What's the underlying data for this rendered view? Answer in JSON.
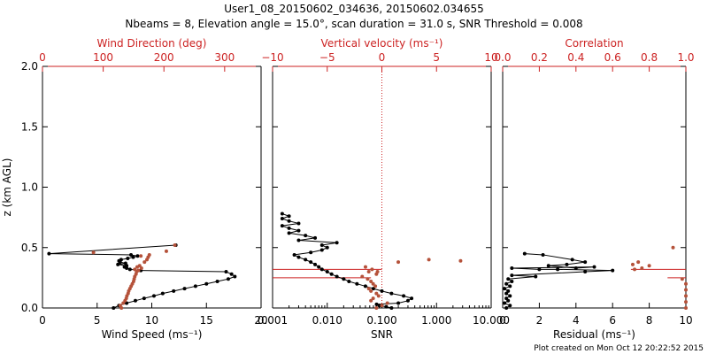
{
  "title_line1": "User1_08_20150602_034636, 20150602.034655",
  "title_line2": "Nbeams = 8, Elevation angle = 15.0°, scan duration = 31.0 s, SNR Threshold = 0.008",
  "footer": "Plot created on Mon Oct 12 20:22:52 2015",
  "colors": {
    "axis": "#000000",
    "secondary": "#cc2222",
    "points_primary": "#000000",
    "points_secondary": "#b5523a"
  },
  "chart_data": [
    {
      "type": "scatter",
      "ylabel": "z (km AGL)",
      "y_ticks": [
        "0.0",
        "0.5",
        "1.0",
        "1.5",
        "2.0"
      ],
      "ylim": [
        0,
        2
      ],
      "bottom_axis": {
        "label": "Wind Speed (ms⁻¹)",
        "ticks": [
          "0",
          "5",
          "10",
          "15",
          "20"
        ],
        "range": [
          0,
          20
        ],
        "scale": "linear"
      },
      "top_axis": {
        "label": "Wind Direction (deg)",
        "ticks": [
          "0",
          "100",
          "200",
          "300"
        ],
        "range": [
          0,
          360
        ],
        "scale": "linear"
      },
      "series": [
        {
          "axis": "bottom",
          "color": "#000000",
          "connected": true,
          "points": [
            [
              6.5,
              0.0
            ],
            [
              7,
              0.02
            ],
            [
              7.7,
              0.04
            ],
            [
              8.5,
              0.06
            ],
            [
              9.3,
              0.08
            ],
            [
              10.2,
              0.1
            ],
            [
              11,
              0.12
            ],
            [
              12,
              0.14
            ],
            [
              13,
              0.16
            ],
            [
              14,
              0.18
            ],
            [
              15,
              0.2
            ],
            [
              16,
              0.22
            ],
            [
              17,
              0.24
            ],
            [
              17.6,
              0.26
            ],
            [
              17.3,
              0.28
            ],
            [
              16.8,
              0.3
            ],
            [
              9,
              0.31
            ],
            [
              8,
              0.32
            ],
            [
              7.7,
              0.33
            ],
            [
              7.5,
              0.34
            ],
            [
              7.7,
              0.35
            ],
            [
              6.9,
              0.36
            ],
            [
              7.6,
              0.37
            ],
            [
              7.1,
              0.38
            ],
            [
              7.0,
              0.39
            ],
            [
              7.2,
              0.4
            ],
            [
              7.8,
              0.41
            ],
            [
              8.3,
              0.42
            ],
            [
              8.7,
              0.43
            ],
            [
              8.1,
              0.44
            ],
            [
              0.6,
              0.45
            ],
            [
              12.2,
              0.52
            ]
          ]
        },
        {
          "axis": "top",
          "color": "#b5523a",
          "connected": false,
          "points": [
            [
              130,
              0.0
            ],
            [
              128,
              0.02
            ],
            [
              133,
              0.04
            ],
            [
              136,
              0.06
            ],
            [
              138,
              0.08
            ],
            [
              139,
              0.1
            ],
            [
              141,
              0.12
            ],
            [
              142,
              0.14
            ],
            [
              144,
              0.16
            ],
            [
              146,
              0.18
            ],
            [
              148,
              0.2
            ],
            [
              150,
              0.22
            ],
            [
              151,
              0.24
            ],
            [
              152,
              0.26
            ],
            [
              154,
              0.28
            ],
            [
              155,
              0.3
            ],
            [
              158,
              0.31
            ],
            [
              152,
              0.32
            ],
            [
              163,
              0.33
            ],
            [
              156,
              0.34
            ],
            [
              160,
              0.35
            ],
            [
              168,
              0.38
            ],
            [
              172,
              0.4
            ],
            [
              174,
              0.42
            ],
            [
              176,
              0.44
            ],
            [
              162,
              0.43
            ],
            [
              84,
              0.46
            ],
            [
              204,
              0.47
            ],
            [
              218,
              0.52
            ]
          ]
        }
      ]
    },
    {
      "type": "scatter",
      "y_ticks": [
        "0.0",
        "0.5",
        "1.0",
        "1.5",
        "2.0"
      ],
      "ylim": [
        0,
        2
      ],
      "bottom_axis": {
        "label": "SNR",
        "ticks": [
          "0.001",
          "0.010",
          "0.100",
          "1.000",
          "10.000"
        ],
        "range": [
          0.001,
          10
        ],
        "scale": "log"
      },
      "top_axis": {
        "label": "Vertical velocity (ms⁻¹)",
        "ticks": [
          "−10",
          "−5",
          "0",
          "5",
          "10"
        ],
        "range": [
          -10,
          10
        ],
        "scale": "linear"
      },
      "threshold_line": 0.1,
      "series": [
        {
          "axis": "bottom",
          "color": "#000000",
          "connected": true,
          "points": [
            [
              0.15,
              0.0
            ],
            [
              0.12,
              0.01
            ],
            [
              0.09,
              0.02
            ],
            [
              0.08,
              0.03
            ],
            [
              0.2,
              0.04
            ],
            [
              0.3,
              0.06
            ],
            [
              0.35,
              0.08
            ],
            [
              0.25,
              0.1
            ],
            [
              0.15,
              0.12
            ],
            [
              0.1,
              0.14
            ],
            [
              0.07,
              0.16
            ],
            [
              0.05,
              0.18
            ],
            [
              0.035,
              0.2
            ],
            [
              0.025,
              0.22
            ],
            [
              0.02,
              0.24
            ],
            [
              0.015,
              0.26
            ],
            [
              0.012,
              0.28
            ],
            [
              0.01,
              0.3
            ],
            [
              0.008,
              0.32
            ],
            [
              0.007,
              0.34
            ],
            [
              0.006,
              0.36
            ],
            [
              0.005,
              0.38
            ],
            [
              0.004,
              0.4
            ],
            [
              0.003,
              0.42
            ],
            [
              0.0025,
              0.44
            ],
            [
              0.005,
              0.46
            ],
            [
              0.008,
              0.48
            ],
            [
              0.01,
              0.5
            ],
            [
              0.008,
              0.52
            ],
            [
              0.015,
              0.54
            ],
            [
              0.003,
              0.56
            ],
            [
              0.006,
              0.58
            ],
            [
              0.004,
              0.6
            ],
            [
              0.002,
              0.62
            ],
            [
              0.003,
              0.64
            ],
            [
              0.002,
              0.66
            ],
            [
              0.0015,
              0.68
            ],
            [
              0.003,
              0.7
            ],
            [
              0.002,
              0.72
            ],
            [
              0.0015,
              0.74
            ],
            [
              0.002,
              0.76
            ],
            [
              0.0015,
              0.78
            ]
          ]
        },
        {
          "axis": "top",
          "color": "#b5523a",
          "connected": false,
          "points": [
            [
              -0.5,
              0.0
            ],
            [
              0,
              0.02
            ],
            [
              0.5,
              0.04
            ],
            [
              -1,
              0.06
            ],
            [
              -0.8,
              0.08
            ],
            [
              -0.3,
              0.1
            ],
            [
              -0.5,
              0.12
            ],
            [
              -1,
              0.14
            ],
            [
              -1.2,
              0.16
            ],
            [
              -0.6,
              0.18
            ],
            [
              -0.8,
              0.2
            ],
            [
              -1,
              0.22
            ],
            [
              -1.3,
              0.24
            ],
            [
              -1.8,
              0.26
            ],
            [
              -0.5,
              0.28
            ],
            [
              -1.2,
              0.3
            ],
            [
              -0.9,
              0.32
            ],
            [
              -1.5,
              0.34
            ],
            [
              1.5,
              0.38
            ],
            [
              4.3,
              0.4
            ],
            [
              7.2,
              0.39
            ],
            [
              -0.4,
              0.3
            ]
          ]
        }
      ],
      "spikes": [
        {
          "axis": "top",
          "color": "#cc2222",
          "from": [
            -10,
            0.32
          ],
          "to": [
            0,
            0.32
          ]
        },
        {
          "axis": "top",
          "color": "#cc2222",
          "from": [
            -10,
            0.25
          ],
          "to": [
            -1,
            0.25
          ]
        }
      ]
    },
    {
      "type": "scatter",
      "y_ticks": [
        "0.0",
        "0.5",
        "1.0",
        "1.5",
        "2.0"
      ],
      "ylim": [
        0,
        2
      ],
      "bottom_axis": {
        "label": "Residual (ms⁻¹)",
        "ticks": [
          "0",
          "2",
          "4",
          "6",
          "8",
          "10"
        ],
        "range": [
          0,
          10
        ],
        "scale": "linear"
      },
      "top_axis": {
        "label": "Correlation",
        "ticks": [
          "0.0",
          "0.2",
          "0.4",
          "0.6",
          "0.8",
          "1.0"
        ],
        "range": [
          0,
          1
        ],
        "scale": "linear"
      },
      "series": [
        {
          "axis": "bottom",
          "color": "#000000",
          "connected": true,
          "points": [
            [
              0.2,
              0.0
            ],
            [
              0.4,
              0.02
            ],
            [
              0.1,
              0.04
            ],
            [
              0.3,
              0.06
            ],
            [
              0.2,
              0.08
            ],
            [
              0.4,
              0.1
            ],
            [
              0.2,
              0.12
            ],
            [
              0.3,
              0.14
            ],
            [
              0.1,
              0.16
            ],
            [
              0.4,
              0.18
            ],
            [
              0.2,
              0.2
            ],
            [
              0.5,
              0.22
            ],
            [
              0.3,
              0.24
            ],
            [
              1.8,
              0.26
            ],
            [
              0.5,
              0.27
            ],
            [
              4.5,
              0.3
            ],
            [
              6,
              0.31
            ],
            [
              3,
              0.32
            ],
            [
              2,
              0.32
            ],
            [
              0.5,
              0.33
            ],
            [
              5,
              0.34
            ],
            [
              4,
              0.33
            ],
            [
              2.5,
              0.35
            ],
            [
              3.5,
              0.36
            ],
            [
              4.5,
              0.38
            ],
            [
              3.8,
              0.4
            ],
            [
              2.2,
              0.44
            ],
            [
              1.2,
              0.45
            ]
          ]
        },
        {
          "axis": "top",
          "color": "#b5523a",
          "connected": false,
          "points": [
            [
              1.0,
              0.0
            ],
            [
              1.0,
              0.05
            ],
            [
              1.0,
              0.1
            ],
            [
              1.0,
              0.15
            ],
            [
              1.0,
              0.2
            ],
            [
              0.98,
              0.24
            ],
            [
              0.72,
              0.32
            ],
            [
              0.76,
              0.33
            ],
            [
              0.8,
              0.35
            ],
            [
              0.71,
              0.36
            ],
            [
              0.74,
              0.38
            ],
            [
              0.93,
              0.5
            ]
          ]
        }
      ],
      "spikes": [
        {
          "axis": "top",
          "color": "#cc2222",
          "from": [
            0.7,
            0.32
          ],
          "to": [
            1.0,
            0.32
          ]
        },
        {
          "axis": "top",
          "color": "#cc2222",
          "from": [
            0.9,
            0.25
          ],
          "to": [
            1.0,
            0.25
          ]
        }
      ]
    }
  ]
}
